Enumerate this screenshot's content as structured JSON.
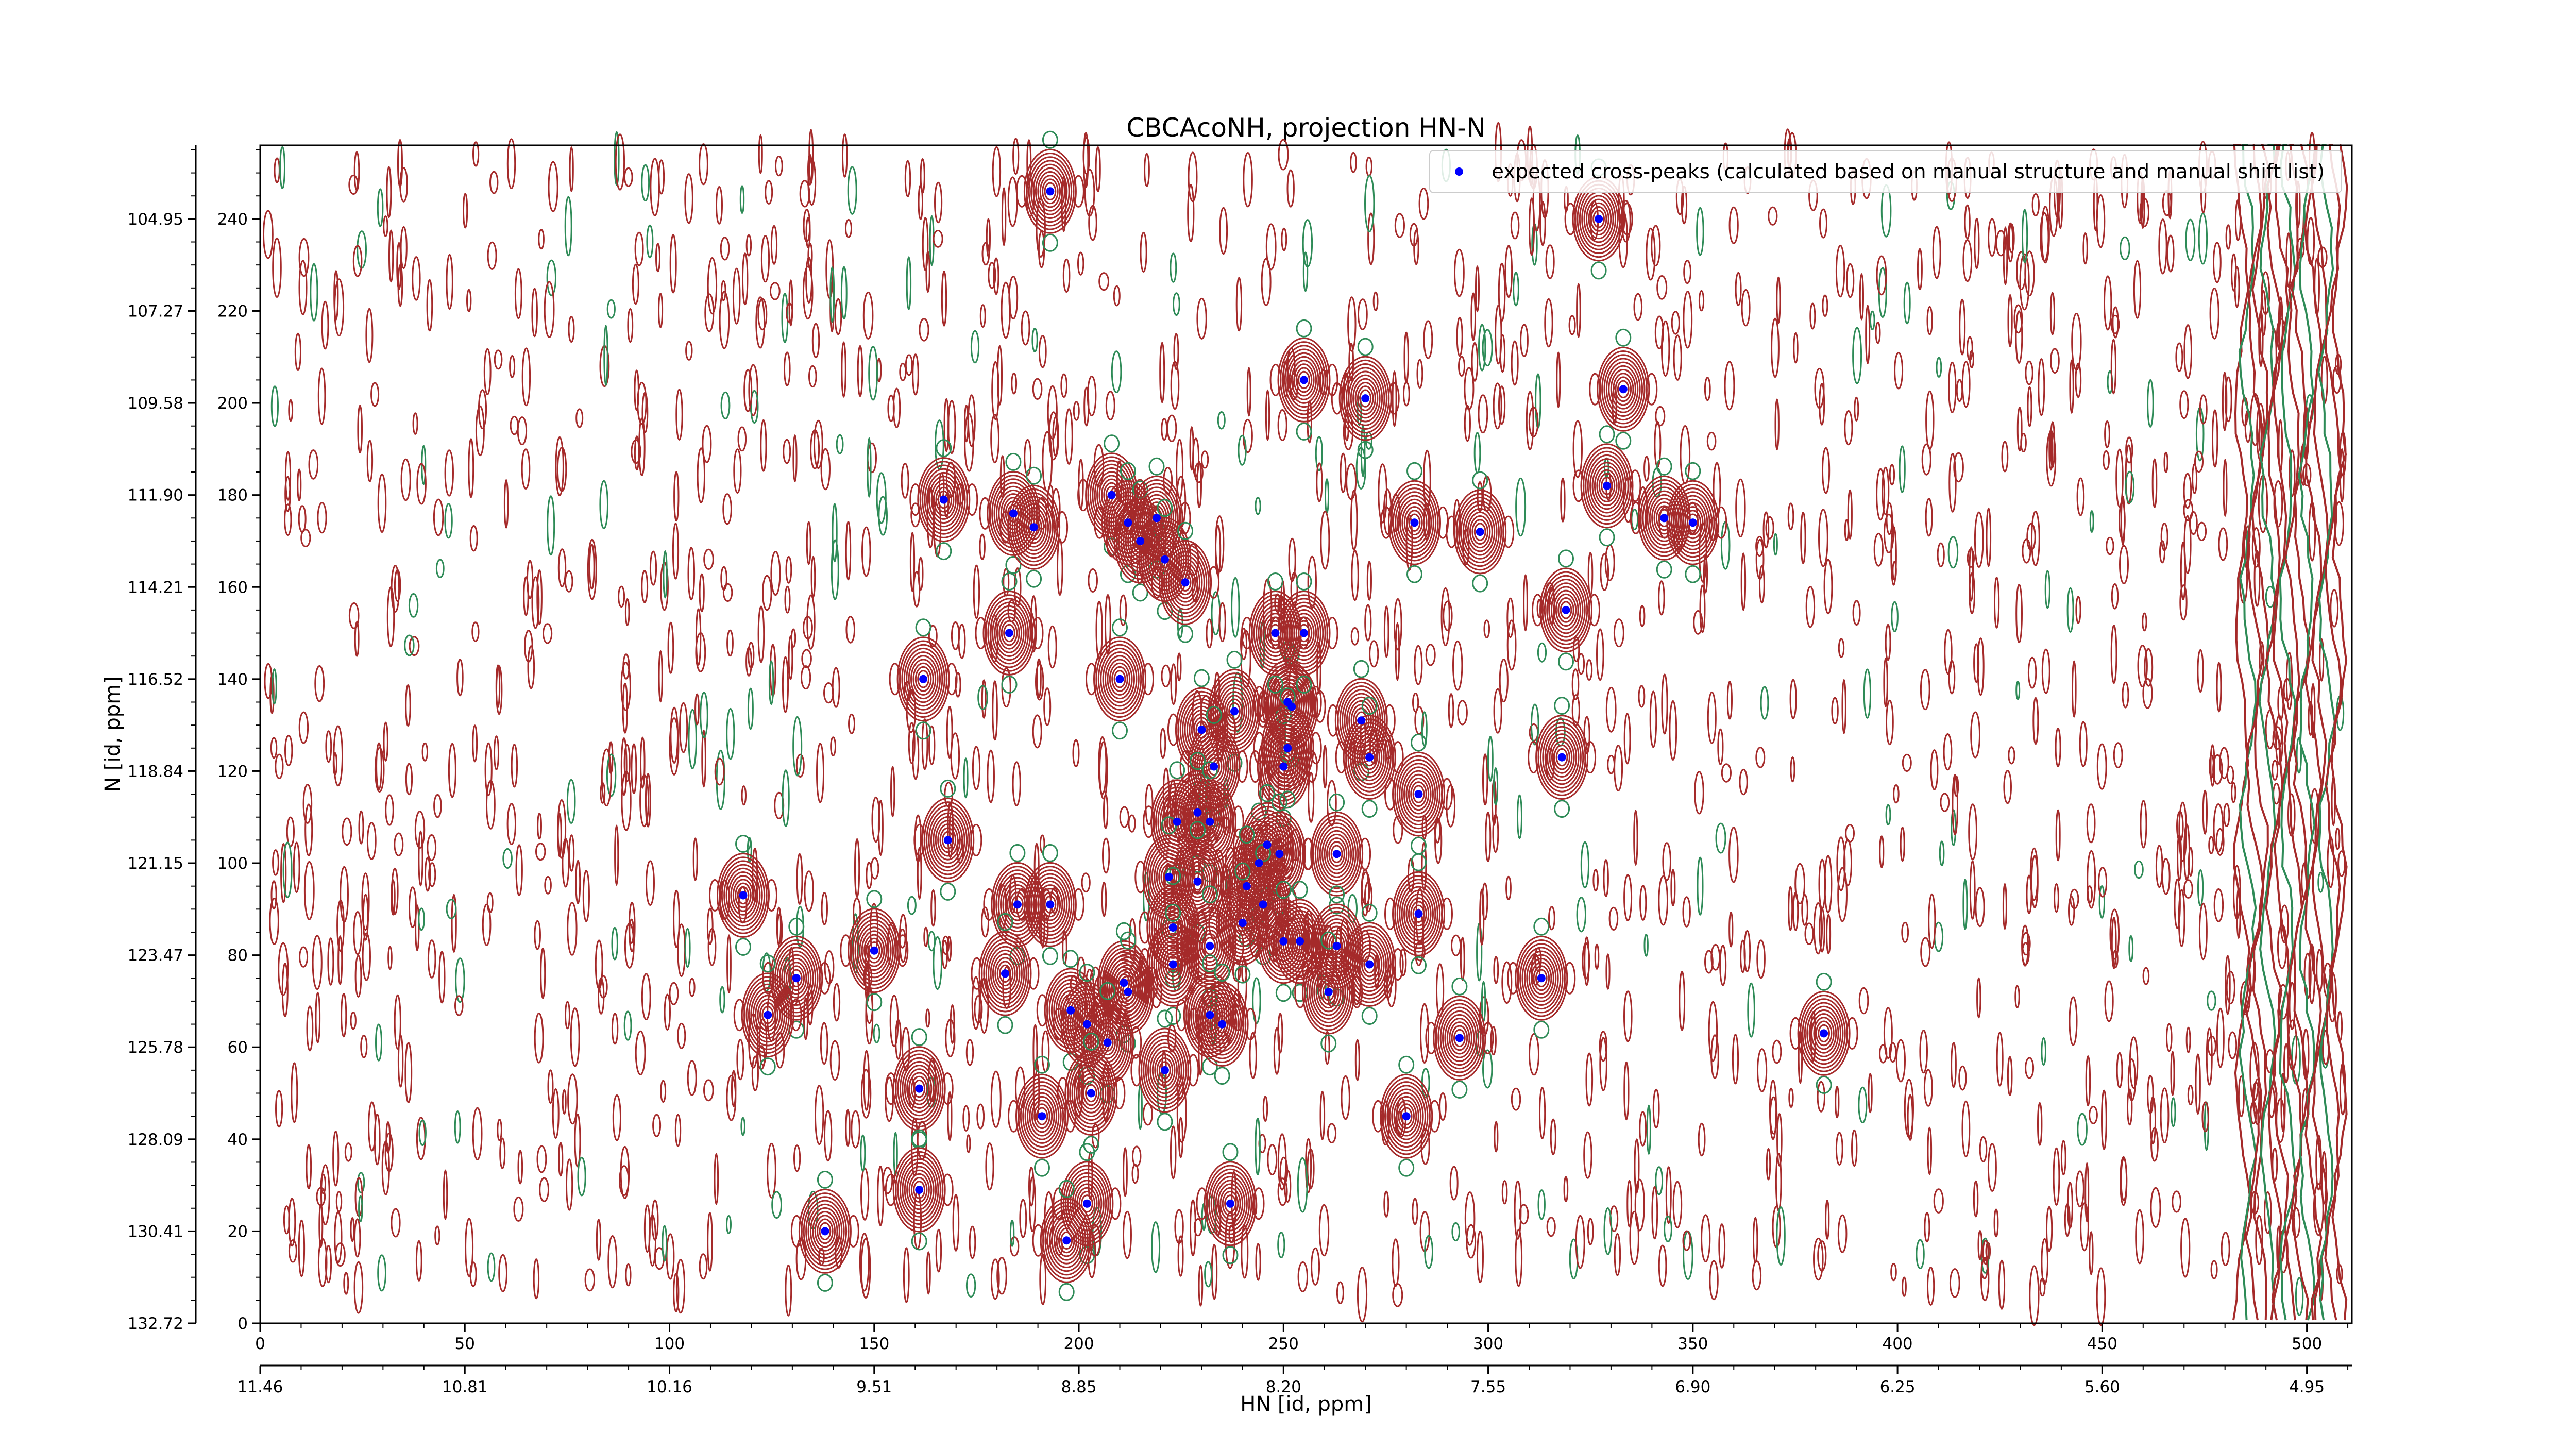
{
  "chart_data": {
    "type": "scatter",
    "title": "CBCAcoNH, projection HN-N",
    "xlabel": "HN [id, ppm]",
    "ylabel": "N [id, ppm]",
    "xlim": [
      0,
      511
    ],
    "ylim": [
      0,
      256
    ],
    "grid": false,
    "legend_position": "top-right",
    "x_index_ticks": [
      "0",
      "50",
      "100",
      "150",
      "200",
      "250",
      "300",
      "350",
      "400",
      "450",
      "500"
    ],
    "x_ppm_ticks": [
      "11.46",
      "10.81",
      "10.16",
      "9.51",
      "8.85",
      "8.20",
      "7.55",
      "6.90",
      "6.25",
      "5.60",
      "4.95"
    ],
    "y_index_ticks": [
      "0",
      "20",
      "40",
      "60",
      "80",
      "100",
      "120",
      "140",
      "160",
      "180",
      "200",
      "220",
      "240"
    ],
    "y_ppm_ticks": [
      "132.72",
      "130.41",
      "128.09",
      "125.78",
      "123.47",
      "121.15",
      "118.84",
      "116.52",
      "114.21",
      "111.90",
      "109.58",
      "107.27",
      "104.95"
    ],
    "colors": {
      "marker": "#0000ff",
      "positive_contour": "#a52a2a",
      "negative_contour": "#2e8b57"
    },
    "series": [
      {
        "name": "expected cross-peaks (calculated based on manual structure and manual shift list)",
        "points": [
          [
            193,
            246
          ],
          [
            327,
            240
          ],
          [
            255,
            205
          ],
          [
            270,
            201
          ],
          [
            333,
            203
          ],
          [
            167,
            179
          ],
          [
            184,
            176
          ],
          [
            189,
            173
          ],
          [
            208,
            180
          ],
          [
            212,
            174
          ],
          [
            215,
            170
          ],
          [
            219,
            175
          ],
          [
            221,
            166
          ],
          [
            226,
            161
          ],
          [
            282,
            174
          ],
          [
            298,
            172
          ],
          [
            329,
            182
          ],
          [
            343,
            175
          ],
          [
            350,
            174
          ],
          [
            319,
            155
          ],
          [
            183,
            150
          ],
          [
            162,
            140
          ],
          [
            210,
            140
          ],
          [
            238,
            133
          ],
          [
            252,
            134
          ],
          [
            251,
            135
          ],
          [
            269,
            131
          ],
          [
            248,
            150
          ],
          [
            255,
            150
          ],
          [
            230,
            129
          ],
          [
            233,
            121
          ],
          [
            250,
            121
          ],
          [
            251,
            125
          ],
          [
            271,
            123
          ],
          [
            318,
            123
          ],
          [
            283,
            115
          ],
          [
            229,
            111
          ],
          [
            224,
            109
          ],
          [
            232,
            109
          ],
          [
            168,
            105
          ],
          [
            244,
            100
          ],
          [
            246,
            104
          ],
          [
            249,
            102
          ],
          [
            263,
            102
          ],
          [
            118,
            93
          ],
          [
            185,
            91
          ],
          [
            193,
            91
          ],
          [
            222,
            97
          ],
          [
            229,
            96
          ],
          [
            241,
            95
          ],
          [
            245,
            91
          ],
          [
            283,
            89
          ],
          [
            223,
            86
          ],
          [
            240,
            87
          ],
          [
            250,
            83
          ],
          [
            254,
            83
          ],
          [
            263,
            82
          ],
          [
            150,
            81
          ],
          [
            232,
            82
          ],
          [
            223,
            78
          ],
          [
            271,
            78
          ],
          [
            131,
            75
          ],
          [
            182,
            76
          ],
          [
            313,
            75
          ],
          [
            211,
            74
          ],
          [
            212,
            72
          ],
          [
            261,
            72
          ],
          [
            124,
            67
          ],
          [
            198,
            68
          ],
          [
            202,
            65
          ],
          [
            232,
            67
          ],
          [
            235,
            65
          ],
          [
            207,
            61
          ],
          [
            293,
            62
          ],
          [
            382,
            63
          ],
          [
            221,
            55
          ],
          [
            161,
            51
          ],
          [
            203,
            50
          ],
          [
            191,
            45
          ],
          [
            280,
            45
          ],
          [
            161,
            29
          ],
          [
            202,
            26
          ],
          [
            237,
            26
          ],
          [
            138,
            20
          ],
          [
            197,
            18
          ]
        ]
      }
    ]
  }
}
